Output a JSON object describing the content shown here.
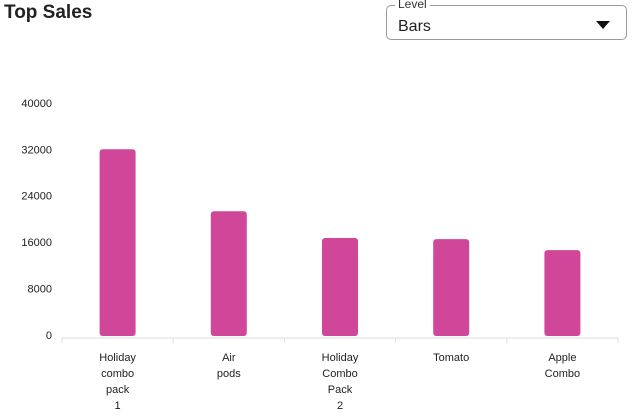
{
  "header": {
    "title": "Top Sales"
  },
  "control": {
    "label": "Level",
    "value": "Bars"
  },
  "chart_data": {
    "type": "bar",
    "categories": [
      "Holiday combo pack 1",
      "Air pods",
      "Holiday Combo Pack 2",
      "Tomato",
      "Apple Combo"
    ],
    "values": [
      32200,
      21500,
      16900,
      16700,
      14800
    ],
    "color": "#d0479a",
    "ylim": [
      0,
      40000
    ],
    "yticks": [
      0,
      8000,
      16000,
      24000,
      32000,
      40000
    ],
    "grid": false
  }
}
